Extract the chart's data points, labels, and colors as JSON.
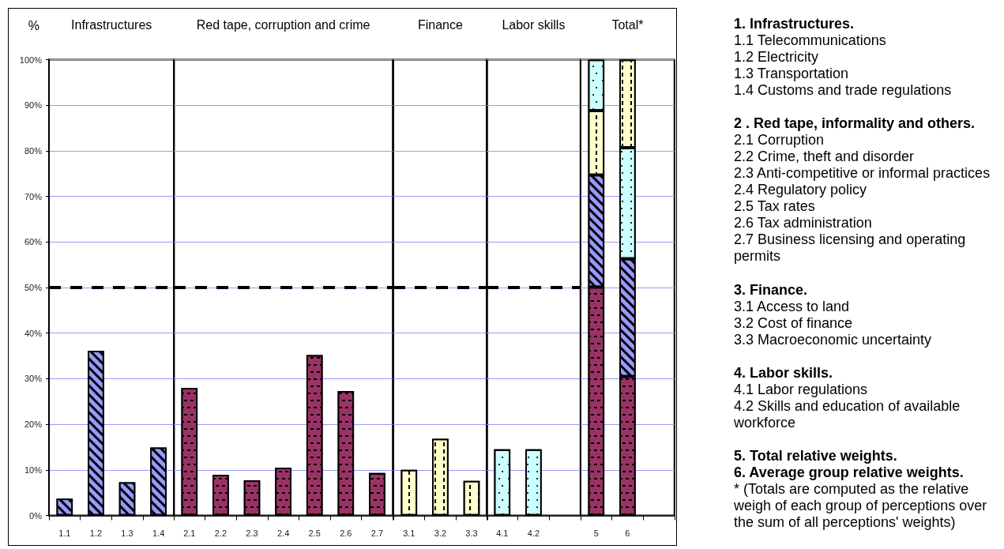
{
  "chart_data": [
    {
      "type": "bar",
      "title": "Infrastructures",
      "ylabel": "%",
      "categories": [
        "1.1",
        "1.2",
        "1.3",
        "1.4"
      ],
      "values": [
        3.7,
        36.1,
        7.3,
        14.9
      ],
      "color": "#9999ff",
      "ylim": [
        0,
        100
      ],
      "yticks": [
        {
          "value": 0,
          "label": "0%"
        },
        {
          "value": 10,
          "label": "10%"
        },
        {
          "value": 20,
          "label": "20%"
        },
        {
          "value": 30,
          "label": "30%"
        },
        {
          "value": 40,
          "label": "40%"
        },
        {
          "value": 50,
          "label": "50%"
        },
        {
          "value": 60,
          "label": "60%"
        },
        {
          "value": 70,
          "label": "70%"
        },
        {
          "value": 80,
          "label": "80%"
        },
        {
          "value": 90,
          "label": "90%"
        },
        {
          "value": 100,
          "label": "100%"
        }
      ],
      "grid": "y",
      "ref_lines": [
        {
          "axis": "y",
          "value": 50,
          "line_style": "dashed",
          "color": "#000000"
        }
      ]
    },
    {
      "type": "bar",
      "title": "Red tape, corruption and crime",
      "categories": [
        "2.1",
        "2.2",
        "2.3",
        "2.4",
        "2.5",
        "2.6",
        "2.7"
      ],
      "values": [
        28,
        8.9,
        7.7,
        10.5,
        35.2,
        27.3,
        9.3
      ],
      "color": "#993366",
      "ylim": [
        0,
        100
      ],
      "yticks": [
        {
          "value": 0,
          "label": null
        },
        {
          "value": 10,
          "label": null
        },
        {
          "value": 20,
          "label": null
        },
        {
          "value": 30,
          "label": null
        },
        {
          "value": 40,
          "label": null
        },
        {
          "value": 50,
          "label": null
        },
        {
          "value": 60,
          "label": null
        },
        {
          "value": 70,
          "label": null
        },
        {
          "value": 80,
          "label": null
        },
        {
          "value": 90,
          "label": null
        },
        {
          "value": 100,
          "label": null
        }
      ],
      "tick_labels": "x",
      "grid": "y",
      "ref_lines": [
        {
          "axis": "y",
          "value": 50,
          "line_style": "dashed",
          "color": "#000000"
        }
      ]
    },
    {
      "type": "bar",
      "title": "Finance",
      "categories": [
        "3.1",
        "3.2",
        "3.3"
      ],
      "values": [
        10,
        16.8,
        7.6
      ],
      "color": "#ffffcc",
      "ylim": [
        0,
        100
      ],
      "yticks": [
        {
          "value": 0,
          "label": null
        },
        {
          "value": 10,
          "label": null
        },
        {
          "value": 20,
          "label": null
        },
        {
          "value": 30,
          "label": null
        },
        {
          "value": 40,
          "label": null
        },
        {
          "value": 50,
          "label": null
        },
        {
          "value": 60,
          "label": null
        },
        {
          "value": 70,
          "label": null
        },
        {
          "value": 80,
          "label": null
        },
        {
          "value": 90,
          "label": null
        },
        {
          "value": 100,
          "label": null
        }
      ],
      "tick_labels": "x",
      "grid": "y",
      "ref_lines": [
        {
          "axis": "y",
          "value": 50,
          "line_style": "dashed",
          "color": "#000000"
        }
      ]
    },
    {
      "type": "bar",
      "title": "Labor skills",
      "categories": [
        "4.1",
        "4.2",
        null
      ],
      "values": [
        14.5,
        14.5,
        null
      ],
      "color": "#ccffff",
      "ylim": [
        0,
        100
      ],
      "yticks": [
        {
          "value": 0,
          "label": null
        },
        {
          "value": 10,
          "label": null
        },
        {
          "value": 20,
          "label": null
        },
        {
          "value": 30,
          "label": null
        },
        {
          "value": 40,
          "label": null
        },
        {
          "value": 50,
          "label": null
        },
        {
          "value": 60,
          "label": null
        },
        {
          "value": 70,
          "label": null
        },
        {
          "value": 80,
          "label": null
        },
        {
          "value": 90,
          "label": null
        },
        {
          "value": 100,
          "label": null
        }
      ],
      "tick_labels": "x",
      "grid": "y",
      "ref_lines": [
        {
          "axis": "y",
          "value": 50,
          "line_style": "dashed",
          "color": "#000000"
        }
      ]
    },
    {
      "type": "bar",
      "title": "Total*",
      "categories": [
        "5",
        "6",
        null
      ],
      "stacked": true,
      "series": [
        {
          "color": "#993366",
          "values": [
            50.1,
            30.5,
            null
          ]
        },
        {
          "color": "#9999ff",
          "values": [
            24.6,
            25.8,
            null
          ]
        },
        {
          "color": "#ffffcc",
          "values": [
            14.1,
            null,
            null
          ]
        },
        {
          "color": "#ccffff",
          "values": [
            11.2,
            24.4,
            null
          ]
        },
        {
          "color": "#ffffcc",
          "values": [
            null,
            19.3,
            null
          ]
        }
      ],
      "ylim": [
        0,
        100
      ],
      "yticks": [
        {
          "value": 0,
          "label": null
        },
        {
          "value": 10,
          "label": null
        },
        {
          "value": 20,
          "label": null
        },
        {
          "value": 30,
          "label": null
        },
        {
          "value": 40,
          "label": null
        },
        {
          "value": 50,
          "label": null
        },
        {
          "value": 60,
          "label": null
        },
        {
          "value": 70,
          "label": null
        },
        {
          "value": 80,
          "label": null
        },
        {
          "value": 90,
          "label": null
        },
        {
          "value": 100,
          "label": null
        }
      ],
      "tick_labels": "x",
      "grid": "y"
    },
    {
      "type": "other",
      "annotations": [
        "1. Infrastructures.\n1.1 Telecommunications\n1.2 Electricity\n1.3 Transportation\n1.4 Customs and trade regulations",
        "2 . Red tape, informality and others.\n2.1 Corruption\n2.2 Crime, theft and disorder\n2.3 Anti-competitive or informal practices\n2.4 Regulatory policy\n2.5 Tax rates\n2.6 Tax administration\n2.7 Business licensing and operating permits",
        "3. Finance.\n3.1 Access to land\n3.2 Cost of finance\n3.3 Macroeconomic uncertainty",
        "4. Labor skills.\n4.1 Labor regulations\n4.2 Skills and education of available workforce",
        "5. Total relative weights.",
        "6. Average group relative weights.\n* (Totals are computed as the relative weigh of each group of perceptions over the sum of all perceptions' weights)"
      ]
    }
  ]
}
